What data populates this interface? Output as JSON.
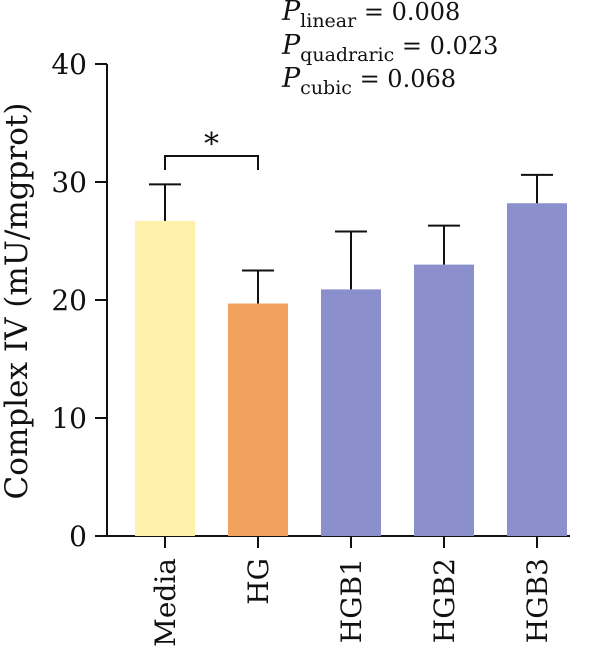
{
  "chart_data": {
    "type": "bar",
    "categories": [
      "Media",
      "HG",
      "HGB1",
      "HGB2",
      "HGB3"
    ],
    "values": [
      26.7,
      19.7,
      20.9,
      23.0,
      28.2
    ],
    "errors": [
      3.1,
      2.8,
      4.9,
      3.3,
      2.4
    ],
    "colors": [
      "#fff1ab",
      "#f2a15f",
      "#8b90cc",
      "#8b90cc",
      "#8b90cc"
    ],
    "xlabel": "",
    "ylabel": "Complex IV (mU/mgprot)",
    "ylim": [
      0,
      40
    ],
    "yticks": [
      0,
      10,
      20,
      30,
      40
    ],
    "significance": {
      "from": "Media",
      "to": "HG",
      "label": "*"
    },
    "stats": [
      {
        "symbol": "P",
        "subscript": "linear",
        "value": "= 0.008"
      },
      {
        "symbol": "P",
        "subscript": "quadraric",
        "value": "= 0.023"
      },
      {
        "symbol": "P",
        "subscript": "cubic",
        "value": "= 0.068"
      }
    ],
    "grid": false,
    "legend": "none"
  }
}
